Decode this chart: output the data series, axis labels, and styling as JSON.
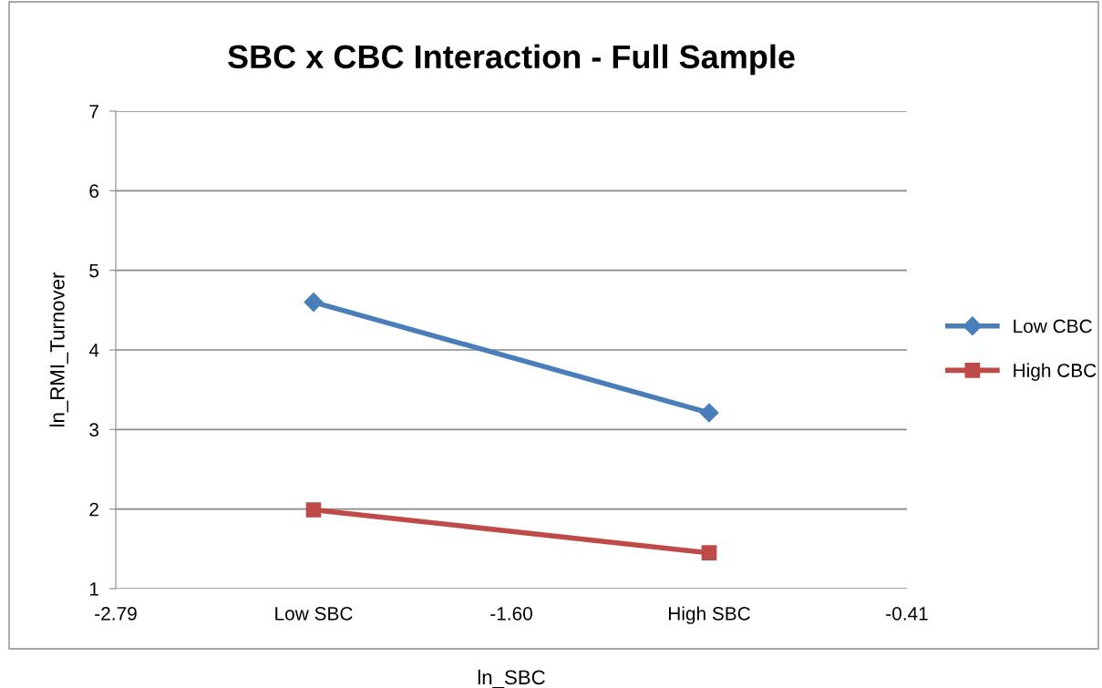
{
  "chart_data": {
    "type": "line",
    "title": "SBC x CBC Interaction - Full Sample",
    "xlabel": "ln_SBC",
    "ylabel": "ln_RMI_Turnover",
    "categories": [
      "-2.79",
      "Low SBC",
      "-1.60",
      "High SBC",
      "-0.41"
    ],
    "series": [
      {
        "name": "Low CBC",
        "color": "#4a7ebb",
        "marker": "diamond",
        "values": [
          null,
          4.6,
          null,
          3.21,
          null
        ]
      },
      {
        "name": "High CBC",
        "color": "#be4b48",
        "marker": "square",
        "values": [
          null,
          1.99,
          null,
          1.45,
          null
        ]
      }
    ],
    "ylim": [
      1,
      7
    ],
    "yticks": [
      1,
      2,
      3,
      4,
      5,
      6,
      7
    ],
    "grid": "y",
    "legend": "right"
  }
}
